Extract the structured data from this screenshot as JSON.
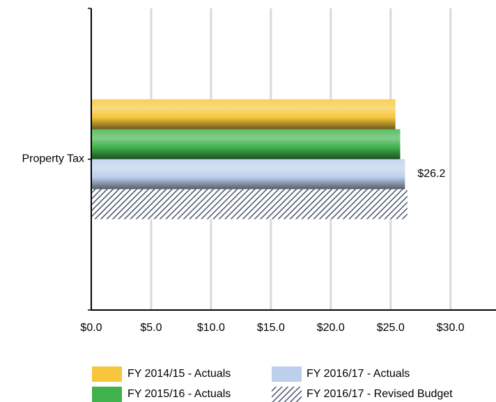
{
  "chart_data": {
    "type": "hbar",
    "categories": [
      "Property Tax"
    ],
    "series": [
      {
        "name": "FY 2014/15 - Actuals",
        "color": "#f7c63c",
        "values": [
          25.4
        ]
      },
      {
        "name": "FY 2015/16 - Actuals",
        "color": "#3fb24b",
        "values": [
          25.8
        ]
      },
      {
        "name": "FY 2016/17 - Actuals",
        "color": "#bccfec",
        "values": [
          26.2
        ],
        "value_labels": [
          "$26.2"
        ]
      },
      {
        "name": "FY 2016/17 - Revised Budget",
        "color": "#44546a",
        "values": [
          26.4
        ],
        "hatch": true
      }
    ],
    "xlim": [
      0,
      33.8
    ],
    "xticks": [
      {
        "value": 0,
        "label": "$0.0"
      },
      {
        "value": 5,
        "label": "$5.0"
      },
      {
        "value": 10,
        "label": "$10.0"
      },
      {
        "value": 15,
        "label": "$15.0"
      },
      {
        "value": 20,
        "label": "$20.0"
      },
      {
        "value": 25,
        "label": "$25.0"
      },
      {
        "value": 30,
        "label": "$30.0"
      }
    ],
    "grid": true,
    "legend": "bottom"
  }
}
